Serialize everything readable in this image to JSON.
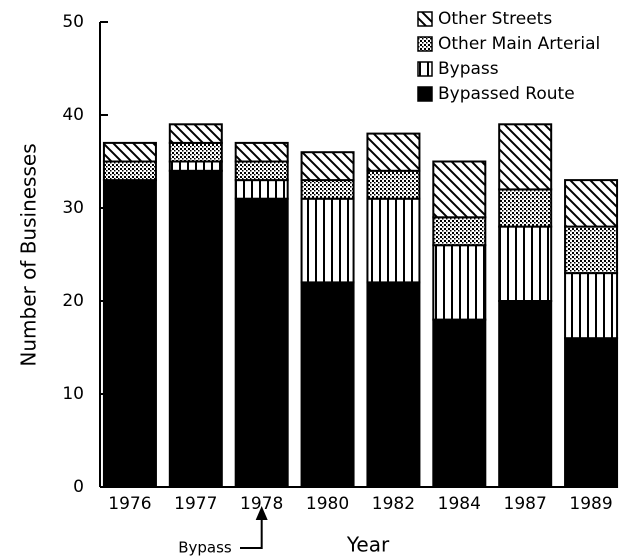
{
  "chart_data": {
    "type": "bar",
    "stacked": true,
    "xlabel": "Year",
    "ylabel": "Number of Businesses",
    "categories": [
      "1976",
      "1977",
      "1978",
      "1980",
      "1982",
      "1984",
      "1987",
      "1989"
    ],
    "series": [
      {
        "name": "Bypassed Route",
        "color": "#000000",
        "pattern": "solid",
        "values": [
          33,
          34,
          31,
          22,
          22,
          18,
          20,
          16
        ]
      },
      {
        "name": "Bypass",
        "color": "#000000",
        "pattern": "vertical",
        "values": [
          0,
          1,
          2,
          9,
          9,
          8,
          8,
          7
        ]
      },
      {
        "name": "Other Main Arterial",
        "color": "#000000",
        "pattern": "dots",
        "values": [
          2,
          2,
          2,
          2,
          3,
          3,
          4,
          5
        ]
      },
      {
        "name": "Other Streets",
        "color": "#000000",
        "pattern": "diagonal",
        "values": [
          2,
          2,
          2,
          3,
          4,
          6,
          7,
          5
        ]
      }
    ],
    "ylim": [
      0,
      50
    ],
    "yticks": [
      0,
      10,
      20,
      30,
      40,
      50
    ],
    "grid": false,
    "legend": "upper right",
    "annotations": [
      {
        "text": "Bypass",
        "category": "1978"
      }
    ]
  }
}
